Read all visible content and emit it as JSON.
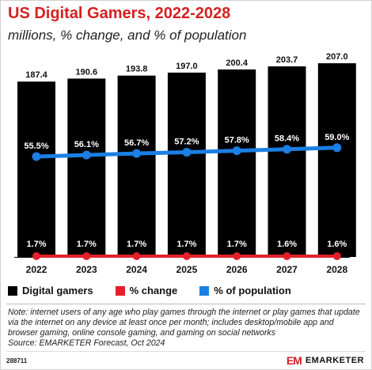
{
  "title": "US Digital Gamers, 2022-2028",
  "subtitle": "millions, % change, and % of population",
  "colors": {
    "bars": "#000000",
    "change": "#e3202a",
    "population": "#1b7fe3",
    "title": "#d62020"
  },
  "chart_data": {
    "type": "bar",
    "title": "US Digital Gamers, 2022-2028",
    "subtitle": "millions, % change, and % of population",
    "categories": [
      "2022",
      "2023",
      "2024",
      "2025",
      "2026",
      "2027",
      "2028"
    ],
    "ylim": [
      0,
      207.0
    ],
    "grid": false,
    "legend_position": "bottom-left",
    "series": [
      {
        "name": "Digital gamers",
        "type": "bar",
        "values": [
          187.4,
          190.6,
          193.8,
          197.0,
          200.4,
          203.7,
          207.0
        ],
        "labels": [
          "187.4",
          "190.6",
          "193.8",
          "197.0",
          "200.4",
          "203.7",
          "207.0"
        ]
      },
      {
        "name": "% change",
        "type": "line",
        "values": [
          1.7,
          1.7,
          1.7,
          1.7,
          1.7,
          1.6,
          1.6
        ],
        "labels": [
          "1.7%",
          "1.7%",
          "1.7%",
          "1.7%",
          "1.7%",
          "1.6%",
          "1.6%"
        ]
      },
      {
        "name": "% of population",
        "type": "line",
        "values": [
          55.5,
          56.1,
          56.7,
          57.2,
          57.8,
          58.4,
          59.0
        ],
        "labels": [
          "55.5%",
          "56.1%",
          "56.7%",
          "57.2%",
          "57.8%",
          "58.4%",
          "59.0%"
        ]
      }
    ]
  },
  "legend": {
    "bars": "Digital gamers",
    "change": "% change",
    "population": "% of population"
  },
  "note": "Note: internet users of any age who play games through the internet or play games that update via the internet on any device at least once per month; includes desktop/mobile app and browser gaming, online console gaming, and gaming on social networks",
  "source": "Source: EMARKETER Forecast, Oct 2024",
  "chart_id": "288711",
  "brand": {
    "mark": "EM",
    "name": "EMARKETER"
  }
}
